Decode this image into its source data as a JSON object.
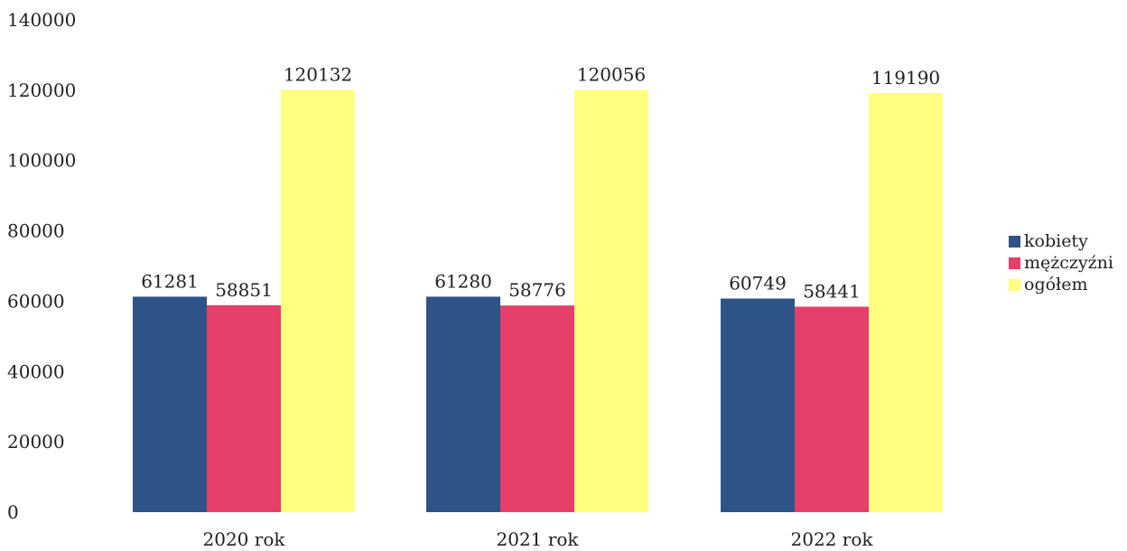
{
  "chart_data": {
    "type": "bar",
    "title": "",
    "xlabel": "",
    "ylabel": "",
    "categories": [
      "2020 rok",
      "2021 rok",
      "2022 rok"
    ],
    "ylim": [
      0,
      140000
    ],
    "yticks": [
      "0",
      "20000",
      "40000",
      "60000",
      "80000",
      "100000",
      "120000",
      "140000"
    ],
    "grid": false,
    "legend_position": "right",
    "series": [
      {
        "name": "kobiety",
        "color": "#2e5486",
        "values": [
          61281,
          61280,
          60749
        ]
      },
      {
        "name": "mężczyźni",
        "color": "#e4406a",
        "values": [
          58851,
          58776,
          58441
        ]
      },
      {
        "name": "ogółem",
        "color": "#ffff80",
        "values": [
          120132,
          120056,
          119190
        ]
      }
    ]
  }
}
